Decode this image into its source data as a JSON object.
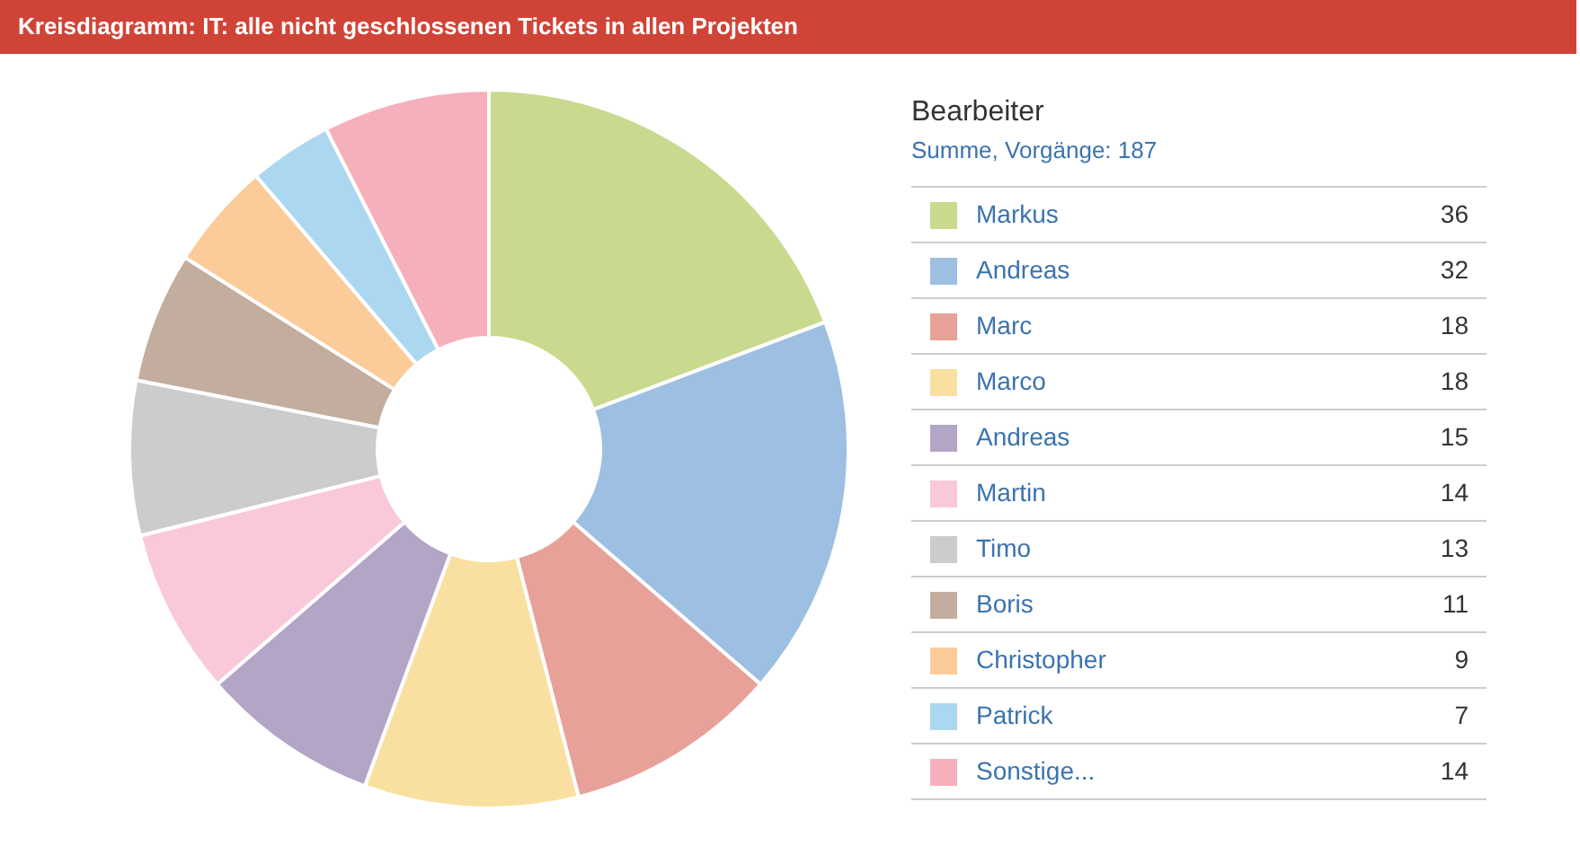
{
  "chart_data": {
    "type": "donut",
    "title": "Kreisdiagramm: IT: alle nicht geschlossenen Tickets in allen Projekten",
    "legend_title": "Bearbeiter",
    "subtitle": "Summe, Vorgänge: 187",
    "categories": [
      "Markus",
      "Andreas",
      "Marc",
      "Marco",
      "Andreas",
      "Martin",
      "Timo",
      "Boris",
      "Christopher",
      "Patrick",
      "Sonstige..."
    ],
    "values": [
      36,
      32,
      18,
      18,
      15,
      14,
      13,
      11,
      9,
      7,
      14
    ],
    "colors": [
      "#c9da8f",
      "#9dbfe2",
      "#e8a198",
      "#f9e0a0",
      "#b3a5c5",
      "#f9c8da",
      "#cccccc",
      "#c2ad9e",
      "#fbcb9a",
      "#acd7f0",
      "#f6b0bb"
    ],
    "data_labels": true,
    "legend": "right"
  }
}
